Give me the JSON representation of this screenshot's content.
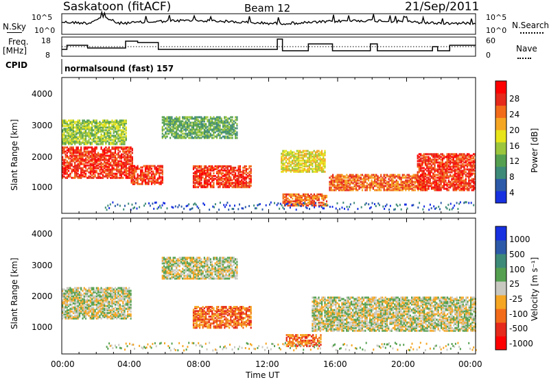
{
  "header": {
    "station": "Saskatoon (fitACF)",
    "beam": "Beam 12",
    "date": "21/Sep/2011"
  },
  "noise_panel": {
    "left_label": "N.Sky",
    "left_ticks": [
      "10^5",
      "10^0"
    ],
    "right_label": "N.Search",
    "right_ticks": [
      "10^5",
      "10^0"
    ]
  },
  "freq_panel": {
    "left_label_1": "Freq.",
    "left_label_2": "[MHz]",
    "left_ticks": [
      "18",
      "8"
    ],
    "right_label": "Nave",
    "right_ticks": [
      "60",
      "0"
    ]
  },
  "cpid": {
    "label": "CPID",
    "value": "normalsound (fast) 157"
  },
  "chart_data": [
    {
      "type": "heatmap",
      "panel": "power",
      "ylabel": "Slant Range [km]",
      "yticks": [
        "4000",
        "3000",
        "2000",
        "1000"
      ],
      "ylim": [
        180,
        4600
      ],
      "colorbar_label": "Power [dB]",
      "colorbar_ticks": [
        "28",
        "24",
        "20",
        "16",
        "12",
        "8",
        "4"
      ],
      "colors": [
        "#1730e0",
        "#2d5aa8",
        "#3e8a78",
        "#55a050",
        "#9cc63c",
        "#e7e41a",
        "#f5a623",
        "#f26b1a",
        "#e5291b",
        "#ff0000"
      ],
      "echo_regions": [
        {
          "t_start": 0.0,
          "t_end": 4.1,
          "r_low": 1300,
          "r_high": 2300,
          "level": 8
        },
        {
          "t_start": 0.0,
          "t_end": 3.7,
          "r_low": 2400,
          "r_high": 3200,
          "level": 4
        },
        {
          "t_start": 4.0,
          "t_end": 5.8,
          "r_low": 1100,
          "r_high": 1700,
          "level": 8
        },
        {
          "t_start": 5.8,
          "t_end": 10.2,
          "r_low": 2600,
          "r_high": 3300,
          "level": 3
        },
        {
          "t_start": 7.6,
          "t_end": 11.0,
          "r_low": 1000,
          "r_high": 1700,
          "level": 8
        },
        {
          "t_start": 12.7,
          "t_end": 15.3,
          "r_low": 1500,
          "r_high": 2200,
          "level": 5
        },
        {
          "t_start": 12.8,
          "t_end": 15.4,
          "r_low": 400,
          "r_high": 800,
          "level": 7
        },
        {
          "t_start": 15.5,
          "t_end": 21.0,
          "r_low": 900,
          "r_high": 1400,
          "level": 7
        },
        {
          "t_start": 20.6,
          "t_end": 24.0,
          "r_low": 900,
          "r_high": 2100,
          "level": 8
        }
      ]
    },
    {
      "type": "heatmap",
      "panel": "velocity",
      "xlabel": "Time UT",
      "ylabel": "Slant Range [km]",
      "yticks": [
        "4000",
        "3000",
        "2000",
        "1000"
      ],
      "ylim": [
        180,
        4600
      ],
      "xticks": [
        "00:00",
        "04:00",
        "08:00",
        "12:00",
        "16:00",
        "20:00",
        "00:00"
      ],
      "xlim": [
        0,
        24
      ],
      "colorbar_label": "Velocity [m s⁻¹]",
      "colorbar_ticks": [
        "1000",
        "500",
        "100",
        "25",
        "-25",
        "-100",
        "-500",
        "-1000"
      ],
      "colors": [
        "#1730e0",
        "#2d5aa8",
        "#3e8a78",
        "#55a050",
        "#c8c8c0",
        "#f5a623",
        "#f26b1a",
        "#e5291b",
        "#ff0000"
      ],
      "echo_regions": [
        {
          "t_start": 0.0,
          "t_end": 4.0,
          "r_low": 1300,
          "r_high": 2300,
          "level": 4
        },
        {
          "t_start": 5.8,
          "t_end": 10.2,
          "r_low": 2600,
          "r_high": 3300,
          "level": 4
        },
        {
          "t_start": 7.6,
          "t_end": 11.0,
          "r_low": 1000,
          "r_high": 1700,
          "level": 6
        },
        {
          "t_start": 13.0,
          "t_end": 15.0,
          "r_low": 400,
          "r_high": 800,
          "level": 6
        },
        {
          "t_start": 14.5,
          "t_end": 24.0,
          "r_low": 900,
          "r_high": 2000,
          "level": 4
        }
      ]
    }
  ]
}
